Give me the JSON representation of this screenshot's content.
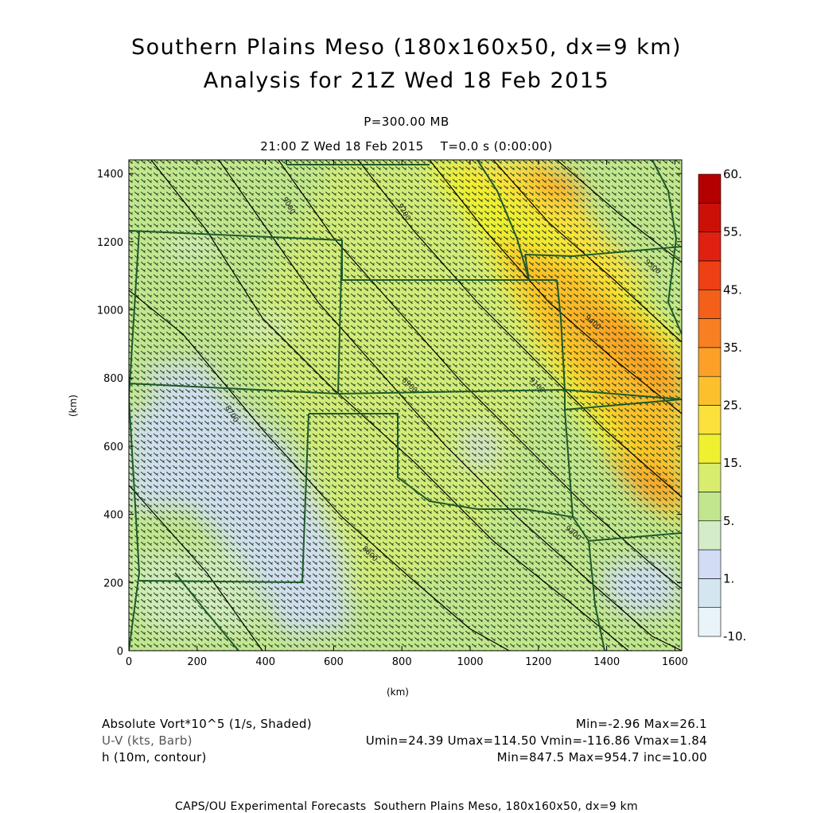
{
  "header": {
    "title_line1": "Southern Plains Meso (180x160x50, dx=9 km)",
    "title_line2": "Analysis for 21Z Wed 18 Feb 2015",
    "level": "P=300.00 MB",
    "time": "21:00 Z Wed 18 Feb 2015    T=0.0 s (0:00:00)"
  },
  "chart_data": {
    "type": "heatmap",
    "xlabel": "(km)",
    "ylabel": "(km)",
    "xlim": [
      0,
      1620
    ],
    "ylim": [
      0,
      1440
    ],
    "x_ticks": [
      "0",
      "200",
      "400",
      "600",
      "800",
      "1000",
      "1200",
      "1400",
      "1600"
    ],
    "y_ticks": [
      "0",
      "200",
      "400",
      "600",
      "800",
      "1000",
      "1200",
      "1400"
    ],
    "colorbar": {
      "labels": [
        "-10.",
        "1.",
        "5.",
        "15.",
        "25.",
        "35.",
        "45.",
        "55.",
        "60."
      ],
      "colors": [
        "#e8f4f8",
        "#d4e6f0",
        "#d2dcf4",
        "#d4ecc8",
        "#c2e68e",
        "#d8ec70",
        "#eef030",
        "#fce03c",
        "#fcc02c",
        "#fca028",
        "#f88022",
        "#f4601a",
        "#ee4014",
        "#e02010",
        "#cc1008",
        "#b40000"
      ]
    },
    "contour_labels": [
      "8700",
      "8800",
      "8900",
      "9000",
      "9100",
      "9200",
      "9300",
      "9400",
      "9500"
    ]
  },
  "legend": {
    "field1": "Absolute Vort*10^5 (1/s, Shaded)",
    "field1_stats": "Min=-2.96 Max=26.1",
    "field2": "U-V (kts, Barb)",
    "field2_stats": "Umin=24.39 Umax=114.50 Vmin=-116.86 Vmax=1.84",
    "field3": "h (10m, contour)",
    "field3_stats": "Min=847.5 Max=954.7 inc=10.00"
  },
  "footer": {
    "credit": "CAPS/OU Experimental Forecasts  Southern Plains Meso, 180x160x50, dx=9 km"
  }
}
